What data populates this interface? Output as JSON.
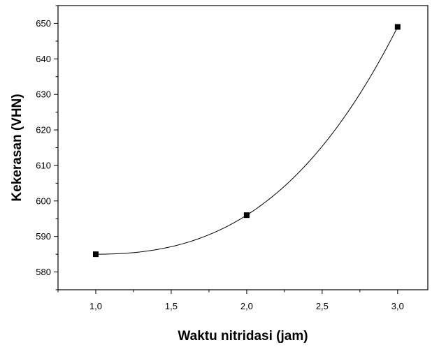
{
  "chart_data": {
    "type": "scatter",
    "title": "",
    "xlabel": "Waktu nitridasi (jam)",
    "ylabel": "Kekerasan (VHN)",
    "xlim": [
      0.75,
      3.2
    ],
    "ylim": [
      575,
      655
    ],
    "x_ticks": [
      1.0,
      1.5,
      2.0,
      2.5,
      3.0
    ],
    "x_tick_labels": [
      "1,0",
      "1,5",
      "2,0",
      "2,5",
      "3,0"
    ],
    "y_ticks": [
      580,
      590,
      600,
      610,
      620,
      630,
      640,
      650
    ],
    "y_tick_labels": [
      "580",
      "590",
      "600",
      "610",
      "620",
      "630",
      "640",
      "650"
    ],
    "grid": false,
    "legend": "none",
    "series": [
      {
        "x": [
          1.0,
          2.0,
          3.0
        ],
        "values": [
          585,
          596,
          649
        ],
        "marker": "square",
        "fit": "smooth-curve"
      }
    ],
    "colors": {
      "axis": "#000000",
      "marker": "#000000",
      "curve": "#000000"
    }
  }
}
